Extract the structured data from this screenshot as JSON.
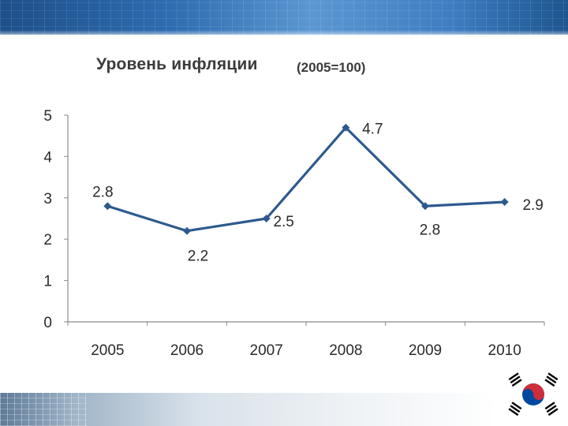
{
  "page": {
    "banner_color": "#2e6cb0"
  },
  "chart_data": {
    "type": "line",
    "title": "Уровень инфляции",
    "subtitle": "(2005=100)",
    "categories": [
      "2005",
      "2006",
      "2007",
      "2008",
      "2009",
      "2010"
    ],
    "series": [
      {
        "values": [
          2.8,
          2.2,
          2.5,
          4.7,
          2.8,
          2.9
        ],
        "data_labels": [
          "2.8",
          "2.2",
          "2.5",
          "4.7",
          "2.8",
          "2.9"
        ],
        "color": "#2d5a8e"
      }
    ],
    "ylim": [
      0,
      5
    ],
    "yticks": [
      "0",
      "1",
      "2",
      "3",
      "4",
      "5"
    ],
    "xlabel": "",
    "ylabel": "",
    "grid": false,
    "legend": "none"
  },
  "logo": {
    "icon": "south-korea-flag-icon",
    "colors": {
      "red": "#cd2e3a",
      "blue": "#0047a0",
      "black": "#000000"
    }
  }
}
